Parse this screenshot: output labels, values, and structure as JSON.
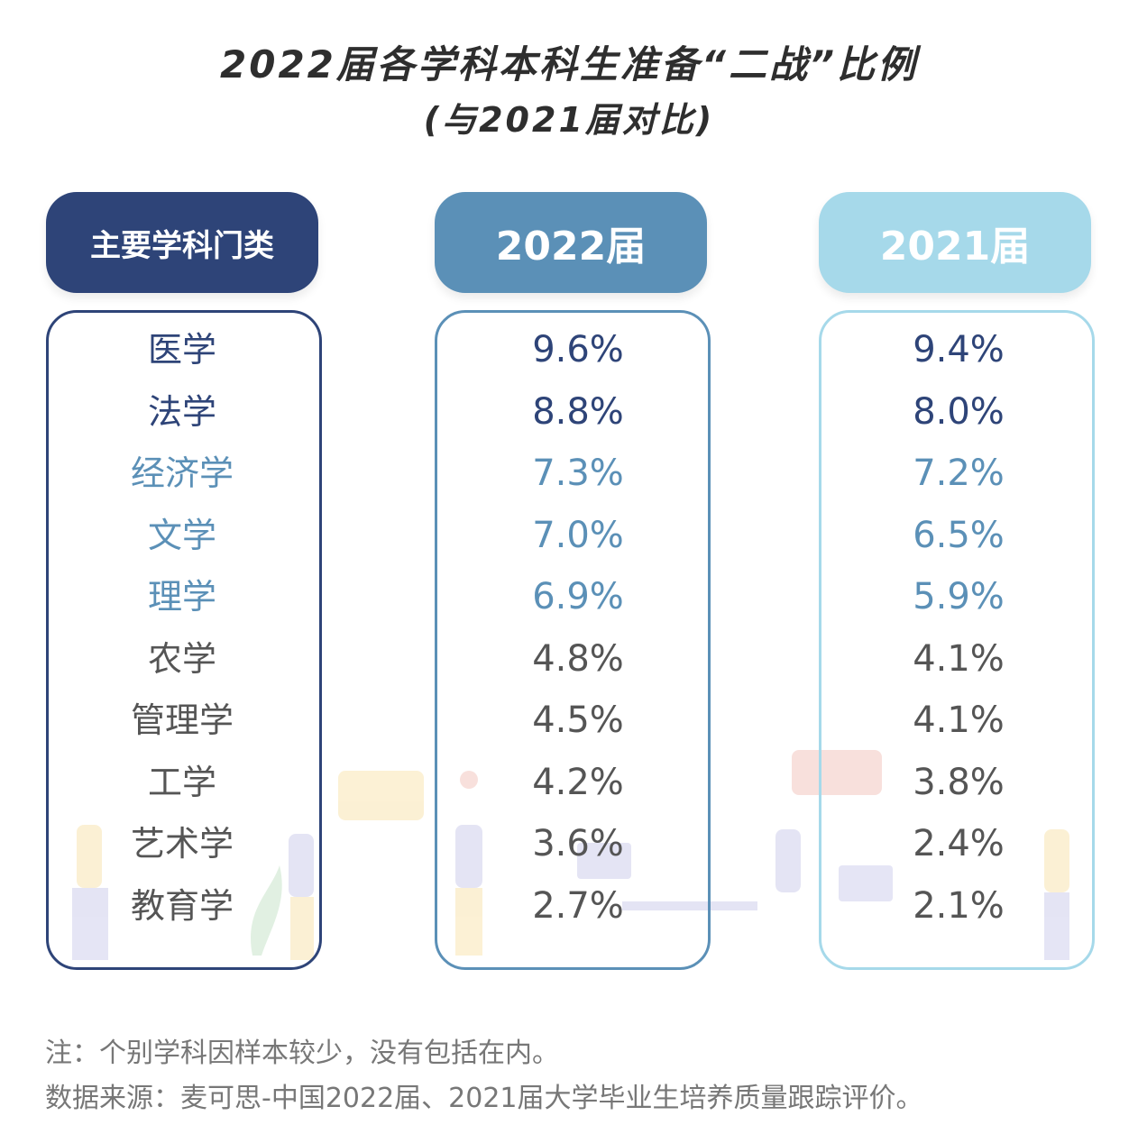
{
  "chart_data": {
    "type": "table",
    "title": "2022届各学科本科生准备“二战”比例",
    "subtitle": "(与2021届对比)",
    "columns": [
      "主要学科门类",
      "2022届",
      "2021届"
    ],
    "rows": [
      {
        "subject": "医学",
        "v2022": "9.6%",
        "v2021": "9.4%",
        "color": "#2e4478"
      },
      {
        "subject": "法学",
        "v2022": "8.8%",
        "v2021": "8.0%",
        "color": "#2e4478"
      },
      {
        "subject": "经济学",
        "v2022": "7.3%",
        "v2021": "7.2%",
        "color": "#5b90b7"
      },
      {
        "subject": "文学",
        "v2022": "7.0%",
        "v2021": "6.5%",
        "color": "#5b90b7"
      },
      {
        "subject": "理学",
        "v2022": "6.9%",
        "v2021": "5.9%",
        "color": "#5b90b7"
      },
      {
        "subject": "农学",
        "v2022": "4.8%",
        "v2021": "4.1%",
        "color": "#555555"
      },
      {
        "subject": "管理学",
        "v2022": "4.5%",
        "v2021": "4.1%",
        "color": "#555555"
      },
      {
        "subject": "工学",
        "v2022": "4.2%",
        "v2021": "3.8%",
        "color": "#555555"
      },
      {
        "subject": "艺术学",
        "v2022": "3.6%",
        "v2021": "2.4%",
        "color": "#555555"
      },
      {
        "subject": "教育学",
        "v2022": "2.7%",
        "v2021": "2.1%",
        "color": "#555555"
      }
    ]
  },
  "colors": {
    "header_col1": "#2e4478",
    "header_col2": "#5b90b7",
    "header_col3": "#a6d9ea"
  },
  "notes": {
    "note": "注：个别学科因样本较少，没有包括在内。",
    "source": "数据来源：麦可思-中国2022届、2021届大学毕业生培养质量跟踪评价。"
  }
}
